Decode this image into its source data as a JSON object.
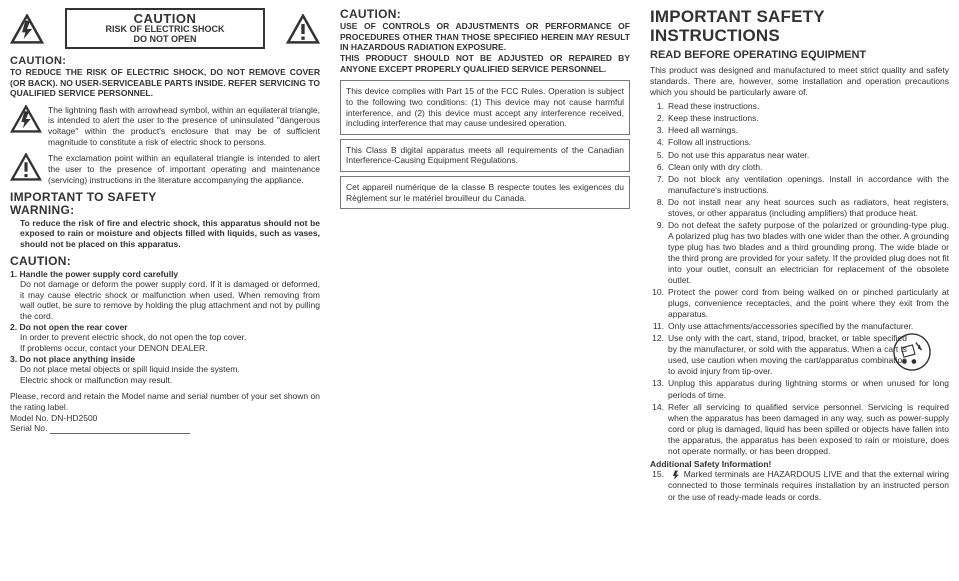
{
  "col1": {
    "cbox": {
      "line1": "CAUTION",
      "line2": "RISK OF ELECTRIC SHOCK",
      "line3": "DO NOT OPEN"
    },
    "caution_h": "CAUTION:",
    "caution_p": "TO REDUCE THE RISK OF ELECTRIC SHOCK, DO NOT REMOVE COVER (OR BACK). NO USER-SERVICEABLE PARTS INSIDE. REFER SERVICING TO QUALIFIED SERVICE PERSONNEL.",
    "sym1": "The lightning flash with arrowhead symbol, within an equilateral triangle, is intended to alert the user to the presence of uninsulated \"dangerous voltage\" within the product's enclosure that may be of sufficient magnitude to constitute a risk of electric shock to persons.",
    "sym2": "The exclamation point within an equilateral triangle is intended to alert the user to the presence of important operating and maintenance (servicing) instructions in the literature accompanying the appliance.",
    "imp_h": "IMPORTANT TO SAFETY",
    "warn_h": "WARNING:",
    "warn_p": "To reduce the risk of fire and electric shock, this apparatus should not be exposed to rain or moisture and objects filled with liquids, such as vases, should not be placed on this apparatus.",
    "caut2_h": "CAUTION:",
    "c1_h": "1. Handle the power supply cord carefully",
    "c1_p": "Do not damage or deform the power supply cord. If it is damaged or deformed, it may cause electric shock or malfunction when used. When removing from wall outlet, be sure to remove by holding the plug attachment and not by pulling the cord.",
    "c2_h": "2. Do not open the rear cover",
    "c2_p1": "In order to prevent electric shock, do not open the top cover.",
    "c2_p2": "If problems occur, contact your DENON DEALER.",
    "c3_h": "3. Do not place anything inside",
    "c3_p1": "Do not place metal objects or spill liquid inside the system.",
    "c3_p2": "Electric shock or malfunction may result.",
    "rec": "Please, record and retain the Model name and serial number of your set shown on the rating label.",
    "model": "Model No. DN-HD2500",
    "serial": "Serial No."
  },
  "col2": {
    "h": "CAUTION:",
    "p1": "USE OF CONTROLS OR ADJUSTMENTS OR PERFORMANCE OF PROCEDURES OTHER THAN THOSE SPECIFIED HEREIN MAY RESULT IN HAZARDOUS RADIATION EXPOSURE.",
    "p2": "THIS PRODUCT SHOULD NOT BE ADJUSTED OR REPAIRED BY ANYONE EXCEPT PROPERLY QUALIFIED SERVICE PERSONNEL.",
    "b1": "This device complies with Part 15 of the FCC Rules. Operation is subject to the following two conditions: (1) This device may not cause harmful interference, and (2) this device must accept any interference received, including interference that may cause undesired operation.",
    "b2": "This Class B digital apparatus meets all requirements of the Canadian Interference-Causing Equipment Regulations.",
    "b3": "Cet appareil numérique de la classe B respecte toutes les exigences du Règlement sur le matériel brouilleur du Canada."
  },
  "col3": {
    "h1": "IMPORTANT SAFETY INSTRUCTIONS",
    "h2": "READ BEFORE OPERATING EQUIPMENT",
    "intro": "This product was designed and manufactured to meet strict quality and safety standards. There are, however, some installation and operation precautions which you should be particularly aware of.",
    "items": [
      "Read these instructions.",
      "Keep these instructions.",
      "Heed all warnings.",
      "Follow all instructions.",
      "Do not use this apparatus near water.",
      "Clean only with dry cloth.",
      "Do not block any ventilation openings. Install in accordance with the manufacture's instructions.",
      "Do not install near any heat sources such as radiators, heat registers, stoves, or other apparatus (including amplifiers) that produce heat.",
      "Do not defeat the safety purpose of the polarized or grounding-type plug. A polarized plug has two blades with one wider than the other. A grounding type plug has two blades and a third grounding prong. The wide blade or the third prong are provided for your safety. If the provided plug does not fit into your outlet, consult an electrician for replacement of the obsolete outlet.",
      "Protect the power cord from being walked on or pinched particularly at plugs, convenience receptacles, and the point where they exit from the apparatus.",
      "Only use attachments/accessories specified by the manufacturer.",
      "Use only with the cart, stand, tripod, bracket, or table specified by the manufacturer, or sold with the apparatus. When a cart is used, use caution when moving the cart/apparatus combination to avoid injury from tip-over.",
      "Unplug this apparatus during lightning storms or when unused for long periods of time.",
      "Refer all servicing to qualified service personnel. Servicing is required when the apparatus has been damaged in any way, such as power-supply cord or plug is damaged, liquid has been spilled or objects have fallen into the apparatus, the apparatus has been exposed to rain or moisture, does not operate normally, or has been dropped."
    ],
    "add_h": "Additional Safety Information!",
    "item15": "Marked terminals are HAZARDOUS LIVE and that the external wiring connected to those terminals requires installation by an instructed person or the use of ready-made leads or cords."
  },
  "style": {
    "text": "#444",
    "border": "#666"
  }
}
